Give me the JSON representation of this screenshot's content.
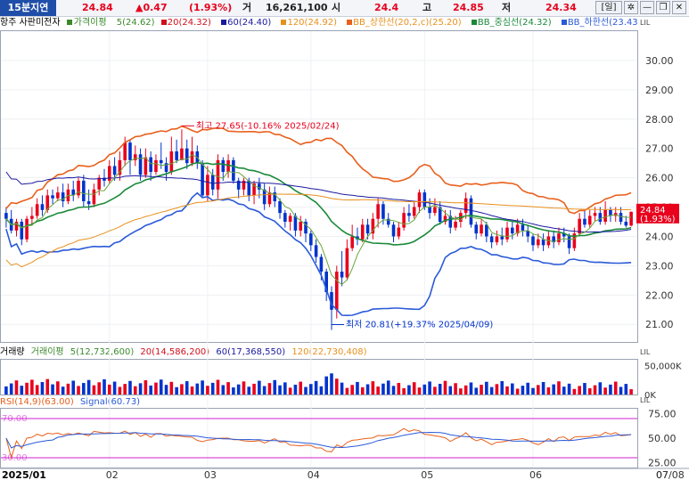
{
  "header": {
    "period": "15분지연",
    "price": "24.84",
    "change": "▲0.47",
    "change_pct": "(1.93%)",
    "volume_label": "거",
    "volume": "16,261,100",
    "open_label": "시",
    "open": "24.4",
    "high_label": "고",
    "high": "24.85",
    "low_label": "저",
    "low": "24.34",
    "interval_btn": "[일]",
    "colors": {
      "up": "#e8001c",
      "down": "#0033cc",
      "period_bg": "#1f4ea8"
    }
  },
  "legend": {
    "price_title": "항주 사판미전자",
    "ma_title": "가격이평",
    "ma5": "5(24.62)",
    "ma20": "20(24.32)",
    "ma60": "60(24.40)",
    "ma120": "120(24.92)",
    "bb_upper": "BB_상한선(20,2,c)(25.20)",
    "bb_mid": "BB_중심선(24.32)",
    "bb_lower": "BB_하한선(23.43)",
    "vol_title": "거래량",
    "vma_title": "거래이평",
    "vma5": "5(12,732,600)",
    "vma20": "20(14,586,200)",
    "vma60": "60(17,368,550)",
    "vma120": "120(22,730,408)",
    "rsi": "RSI(14,9)(63.00)",
    "signal": "Signal(60.73)"
  },
  "chart_data": [
    {
      "type": "candlestick",
      "title": "항주 사판미전자",
      "ylim": [
        20.4,
        31.0
      ],
      "ticks": [
        "30.00",
        "29.00",
        "28.00",
        "27.00",
        "26.00",
        "25.00",
        "24.00",
        "23.00",
        "22.00",
        "21.00"
      ],
      "last_price_tag": "24.84",
      "last_pct_tag": "(1.93%)",
      "annotations": {
        "high": "최고 27.65(-10.16% 2025/02/24)",
        "low": "최저 20.81(+19.37% 2025/04/09)"
      },
      "x_labels": [
        "2025/01",
        "02",
        "03",
        "04",
        "05",
        "06",
        "07",
        "07/08"
      ],
      "x_label_index": [
        0,
        20,
        39,
        59,
        81,
        102,
        122,
        132
      ],
      "candles": [
        [
          24.8,
          24.6,
          25.0,
          24.3
        ],
        [
          24.6,
          24.2,
          24.9,
          24.1
        ],
        [
          24.2,
          24.5,
          24.6,
          24.0
        ],
        [
          24.5,
          23.9,
          24.6,
          23.7
        ],
        [
          23.9,
          24.6,
          24.7,
          23.8
        ],
        [
          24.6,
          24.7,
          25.0,
          24.4
        ],
        [
          24.7,
          25.1,
          25.3,
          24.6
        ],
        [
          25.1,
          24.9,
          25.4,
          24.7
        ],
        [
          24.9,
          25.4,
          25.6,
          24.8
        ],
        [
          25.4,
          25.3,
          25.6,
          25.1
        ],
        [
          25.3,
          25.5,
          25.7,
          25.2
        ],
        [
          25.5,
          25.2,
          25.8,
          25.0
        ],
        [
          25.2,
          25.6,
          25.8,
          25.1
        ],
        [
          25.6,
          25.4,
          25.9,
          25.2
        ],
        [
          25.4,
          25.9,
          26.0,
          25.3
        ],
        [
          25.9,
          25.2,
          26.1,
          25.0
        ],
        [
          25.2,
          25.1,
          25.6,
          24.9
        ],
        [
          25.1,
          25.6,
          25.8,
          25.0
        ],
        [
          25.6,
          26.0,
          26.1,
          25.4
        ],
        [
          26.0,
          25.9,
          26.3,
          25.7
        ],
        [
          25.9,
          26.4,
          26.6,
          25.8
        ],
        [
          26.4,
          26.1,
          26.7,
          25.9
        ],
        [
          26.1,
          26.6,
          26.9,
          25.9
        ],
        [
          26.6,
          27.2,
          27.4,
          26.4
        ],
        [
          27.2,
          26.6,
          27.3,
          26.1
        ],
        [
          26.6,
          26.8,
          27.1,
          26.4
        ],
        [
          26.8,
          26.1,
          27.0,
          25.9
        ],
        [
          26.1,
          26.7,
          27.0,
          26.0
        ],
        [
          26.7,
          26.2,
          26.9,
          25.9
        ],
        [
          26.2,
          26.6,
          26.8,
          26.1
        ],
        [
          26.6,
          26.5,
          27.2,
          26.3
        ],
        [
          26.5,
          26.2,
          26.7,
          25.9
        ],
        [
          26.2,
          26.9,
          27.4,
          26.1
        ],
        [
          26.9,
          26.6,
          27.3,
          26.5
        ],
        [
          26.6,
          27.0,
          27.65,
          26.8
        ],
        [
          27.0,
          26.5,
          27.3,
          26.3
        ],
        [
          26.5,
          26.9,
          27.4,
          26.4
        ],
        [
          26.9,
          26.5,
          27.1,
          26.3
        ],
        [
          26.5,
          25.4,
          26.6,
          25.3
        ],
        [
          25.4,
          26.1,
          26.4,
          25.2
        ],
        [
          26.1,
          25.6,
          26.3,
          25.4
        ],
        [
          25.6,
          26.6,
          26.8,
          25.3
        ],
        [
          26.6,
          26.2,
          26.7,
          25.9
        ],
        [
          26.2,
          26.6,
          26.8,
          26.0
        ],
        [
          26.6,
          25.9,
          26.7,
          25.8
        ],
        [
          25.9,
          25.6,
          26.0,
          25.3
        ],
        [
          25.6,
          25.9,
          26.0,
          25.4
        ],
        [
          25.9,
          25.4,
          26.0,
          25.2
        ],
        [
          25.4,
          25.8,
          25.9,
          25.1
        ],
        [
          25.8,
          25.6,
          26.0,
          25.3
        ],
        [
          25.6,
          25.1,
          25.8,
          24.9
        ],
        [
          25.1,
          25.5,
          25.7,
          25.0
        ],
        [
          25.5,
          25.2,
          25.7,
          25.0
        ],
        [
          25.2,
          24.8,
          25.3,
          24.6
        ],
        [
          24.8,
          24.5,
          24.9,
          24.3
        ],
        [
          24.5,
          24.7,
          24.8,
          24.2
        ],
        [
          24.7,
          24.2,
          24.8,
          24.0
        ],
        [
          24.2,
          24.5,
          24.7,
          24.0
        ],
        [
          24.5,
          24.1,
          24.6,
          23.8
        ],
        [
          24.1,
          23.7,
          24.2,
          23.5
        ],
        [
          23.7,
          23.3,
          23.9,
          23.1
        ],
        [
          23.3,
          22.8,
          23.4,
          22.5
        ],
        [
          22.8,
          22.1,
          22.9,
          21.8
        ],
        [
          22.1,
          21.5,
          22.3,
          20.81
        ],
        [
          21.5,
          22.8,
          23.0,
          21.2
        ],
        [
          22.8,
          22.6,
          23.5,
          22.3
        ],
        [
          22.6,
          23.6,
          23.9,
          22.5
        ],
        [
          23.6,
          24.0,
          24.4,
          23.5
        ],
        [
          24.0,
          23.9,
          24.3,
          23.7
        ],
        [
          23.9,
          24.4,
          24.6,
          23.8
        ],
        [
          24.4,
          24.1,
          24.6,
          23.9
        ],
        [
          24.1,
          24.6,
          24.8,
          23.9
        ],
        [
          24.6,
          25.1,
          25.3,
          24.3
        ],
        [
          25.1,
          24.6,
          25.2,
          24.4
        ],
        [
          24.6,
          24.4,
          24.8,
          24.3
        ],
        [
          24.4,
          24.0,
          24.5,
          23.8
        ],
        [
          24.0,
          24.3,
          24.5,
          23.9
        ],
        [
          24.3,
          24.8,
          25.0,
          24.2
        ],
        [
          24.8,
          24.7,
          25.1,
          24.5
        ],
        [
          24.7,
          25.0,
          25.2,
          24.6
        ],
        [
          25.0,
          25.5,
          25.6,
          24.8
        ],
        [
          25.5,
          25.0,
          25.6,
          24.9
        ],
        [
          25.0,
          24.8,
          25.3,
          24.6
        ],
        [
          24.8,
          25.0,
          25.3,
          24.7
        ],
        [
          25.0,
          24.5,
          25.2,
          24.4
        ],
        [
          24.5,
          24.7,
          24.9,
          24.4
        ],
        [
          24.7,
          24.3,
          24.9,
          24.1
        ],
        [
          24.3,
          24.5,
          24.7,
          24.2
        ],
        [
          24.5,
          24.8,
          24.9,
          24.3
        ],
        [
          24.8,
          25.3,
          25.5,
          24.6
        ],
        [
          25.3,
          24.4,
          25.4,
          24.3
        ],
        [
          24.4,
          24.1,
          24.5,
          23.9
        ],
        [
          24.1,
          24.4,
          24.6,
          24.0
        ],
        [
          24.4,
          24.0,
          24.5,
          23.8
        ],
        [
          24.0,
          23.8,
          24.1,
          23.6
        ],
        [
          23.8,
          24.0,
          24.2,
          23.7
        ],
        [
          24.0,
          23.9,
          24.3,
          23.7
        ],
        [
          23.9,
          24.3,
          24.5,
          23.8
        ],
        [
          24.3,
          24.1,
          24.5,
          23.9
        ],
        [
          24.1,
          24.4,
          24.6,
          24.0
        ],
        [
          24.4,
          24.2,
          24.6,
          24.0
        ],
        [
          24.2,
          24.0,
          24.4,
          23.8
        ],
        [
          24.0,
          23.7,
          24.1,
          23.5
        ],
        [
          23.7,
          23.9,
          24.1,
          23.6
        ],
        [
          23.9,
          23.7,
          24.1,
          23.5
        ],
        [
          23.7,
          24.0,
          24.2,
          23.6
        ],
        [
          24.0,
          23.8,
          24.2,
          23.6
        ],
        [
          23.8,
          24.1,
          24.3,
          23.7
        ],
        [
          24.1,
          24.0,
          24.3,
          23.8
        ],
        [
          24.0,
          23.6,
          24.1,
          23.4
        ],
        [
          23.6,
          24.1,
          24.3,
          23.5
        ],
        [
          24.1,
          24.6,
          24.8,
          24.0
        ],
        [
          24.6,
          24.4,
          24.9,
          24.3
        ],
        [
          24.4,
          24.7,
          24.9,
          24.3
        ],
        [
          24.7,
          24.8,
          25.0,
          24.5
        ],
        [
          24.8,
          24.5,
          25.0,
          24.4
        ],
        [
          24.5,
          24.9,
          25.2,
          24.4
        ],
        [
          24.9,
          24.7,
          25.0,
          24.5
        ],
        [
          24.7,
          24.8,
          25.0,
          24.5
        ],
        [
          24.8,
          24.5,
          25.0,
          24.4
        ],
        [
          24.5,
          24.37,
          24.7,
          24.3
        ],
        [
          24.37,
          24.84,
          24.85,
          24.34
        ]
      ]
    },
    {
      "type": "bar",
      "title": "거래량",
      "ticks": [
        "50,000K",
        "0K"
      ],
      "ylim": [
        0,
        60000000
      ]
    },
    {
      "type": "line",
      "title": "RSI(14,9)",
      "ylim": [
        20,
        80
      ],
      "ticks": [
        "75.00",
        "50.00",
        "25.00"
      ],
      "bands": [
        "70.00",
        "30.00"
      ],
      "series": [
        {
          "name": "RSI(14,9)",
          "last": 63.0
        },
        {
          "name": "Signal",
          "last": 60.73
        }
      ]
    }
  ]
}
